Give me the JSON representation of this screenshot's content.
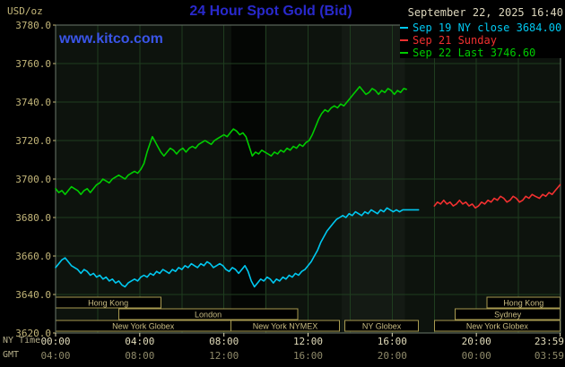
{
  "header": {
    "title": "24 Hour Spot Gold (Bid)",
    "datetime": "September 22, 2025 16:40",
    "watermark": "www.kitco.com",
    "y_unit": "USD/oz"
  },
  "legend": {
    "items": [
      {
        "label": "Sep 19 NY close 3684.00",
        "color": "#00c8f0"
      },
      {
        "label": "Sep 21 Sunday",
        "color": "#f23030"
      },
      {
        "label": "Sep 22 Last 3746.60",
        "color": "#00cc00"
      }
    ]
  },
  "axes": {
    "ny_time_label": "NY Time",
    "gmt_label": "GMT",
    "y_ticks": [
      "3780.0",
      "3760.0",
      "3740.0",
      "3720.0",
      "3700.0",
      "3680.0",
      "3660.0",
      "3640.0",
      "3620.0"
    ],
    "x_tick_hours": [
      0,
      4,
      8,
      12,
      16,
      20,
      23.983
    ],
    "x_ticks_ny": [
      "00:00",
      "04:00",
      "08:00",
      "12:00",
      "16:00",
      "20:00",
      "23:59"
    ],
    "x_ticks_gmt": [
      "04:00",
      "08:00",
      "12:00",
      "16:00",
      "20:00",
      "00:00",
      "03:59"
    ]
  },
  "colors": {
    "page_bg": "#000000",
    "plot_bg": "#0d130d",
    "grid": "#1f3d1f",
    "frame": "#6b7a6b",
    "title": "#2929cc",
    "watermark": "#3a55e8",
    "date_text": "#dcd6bc",
    "axis_text": "#c3b679",
    "axis_text_ny": "#e2dcba",
    "axis_text_gmt": "#8f8a6a",
    "session_border": "#a89a50",
    "session_text": "#c9bc82"
  },
  "chart_data": {
    "type": "line",
    "title": "24 Hour Spot Gold (Bid)",
    "ylabel": "USD/oz",
    "ylim": [
      3620,
      3780
    ],
    "ytick_step": 20,
    "xlim": [
      0,
      24
    ],
    "grid": true,
    "legend_position": "top-right",
    "shaded_regions": [
      {
        "name": "nymex-morning-shade",
        "start": 8.35,
        "end": 9.95,
        "color": "rgba(0,0,0,0.65)"
      },
      {
        "name": "afternoon-shade",
        "start": 13.6,
        "end": 16.6,
        "color": "rgba(255,255,255,0.03)"
      }
    ],
    "sessions": [
      {
        "row": 0,
        "label": "Hong Kong",
        "start": 0,
        "end": 5.0
      },
      {
        "row": 0,
        "label": "Hong Kong",
        "start": 20.5,
        "end": 23.98
      },
      {
        "row": 1,
        "label": "London",
        "start": 3.0,
        "end": 11.5
      },
      {
        "row": 1,
        "label": "Sydney",
        "start": 19.0,
        "end": 23.98
      },
      {
        "row": 2,
        "label": "New York Globex",
        "start": 0,
        "end": 8.33
      },
      {
        "row": 2,
        "label": "New York NYMEX",
        "start": 8.33,
        "end": 13.5
      },
      {
        "row": 2,
        "label": "NY Globex",
        "start": 13.75,
        "end": 17.25
      },
      {
        "row": 2,
        "label": "New York Globex",
        "start": 18.0,
        "end": 23.98
      }
    ],
    "series": [
      {
        "id": "sep19-ny-close",
        "name": "Sep 19 NY close 3684.00",
        "color": "#00c8f0",
        "close": 3684.0,
        "points": [
          [
            0.0,
            3654
          ],
          [
            0.15,
            3656
          ],
          [
            0.3,
            3658
          ],
          [
            0.45,
            3659
          ],
          [
            0.6,
            3657
          ],
          [
            0.75,
            3655
          ],
          [
            0.9,
            3654
          ],
          [
            1.05,
            3653
          ],
          [
            1.2,
            3651
          ],
          [
            1.35,
            3653
          ],
          [
            1.5,
            3652
          ],
          [
            1.65,
            3650
          ],
          [
            1.8,
            3651
          ],
          [
            1.95,
            3649
          ],
          [
            2.1,
            3650
          ],
          [
            2.25,
            3648
          ],
          [
            2.4,
            3649
          ],
          [
            2.55,
            3647
          ],
          [
            2.7,
            3648
          ],
          [
            2.85,
            3646
          ],
          [
            3.0,
            3647
          ],
          [
            3.15,
            3645
          ],
          [
            3.3,
            3644
          ],
          [
            3.45,
            3646
          ],
          [
            3.6,
            3647
          ],
          [
            3.75,
            3648
          ],
          [
            3.9,
            3647
          ],
          [
            4.05,
            3649
          ],
          [
            4.2,
            3650
          ],
          [
            4.35,
            3649
          ],
          [
            4.5,
            3651
          ],
          [
            4.65,
            3650
          ],
          [
            4.8,
            3652
          ],
          [
            4.95,
            3651
          ],
          [
            5.1,
            3653
          ],
          [
            5.25,
            3652
          ],
          [
            5.4,
            3651
          ],
          [
            5.55,
            3653
          ],
          [
            5.7,
            3652
          ],
          [
            5.85,
            3654
          ],
          [
            6.0,
            3653
          ],
          [
            6.15,
            3655
          ],
          [
            6.3,
            3654
          ],
          [
            6.45,
            3656
          ],
          [
            6.6,
            3655
          ],
          [
            6.75,
            3654
          ],
          [
            6.9,
            3656
          ],
          [
            7.05,
            3655
          ],
          [
            7.2,
            3657
          ],
          [
            7.35,
            3656
          ],
          [
            7.5,
            3654
          ],
          [
            7.65,
            3655
          ],
          [
            7.8,
            3656
          ],
          [
            7.95,
            3655
          ],
          [
            8.1,
            3653
          ],
          [
            8.25,
            3652
          ],
          [
            8.4,
            3654
          ],
          [
            8.55,
            3653
          ],
          [
            8.7,
            3651
          ],
          [
            8.85,
            3653
          ],
          [
            9.0,
            3655
          ],
          [
            9.15,
            3652
          ],
          [
            9.3,
            3647
          ],
          [
            9.45,
            3644
          ],
          [
            9.6,
            3646
          ],
          [
            9.75,
            3648
          ],
          [
            9.9,
            3647
          ],
          [
            10.05,
            3649
          ],
          [
            10.2,
            3648
          ],
          [
            10.35,
            3646
          ],
          [
            10.5,
            3648
          ],
          [
            10.65,
            3647
          ],
          [
            10.8,
            3649
          ],
          [
            10.95,
            3648
          ],
          [
            11.1,
            3650
          ],
          [
            11.25,
            3649
          ],
          [
            11.4,
            3651
          ],
          [
            11.55,
            3650
          ],
          [
            11.7,
            3652
          ],
          [
            11.85,
            3653
          ],
          [
            12.0,
            3655
          ],
          [
            12.15,
            3657
          ],
          [
            12.3,
            3660
          ],
          [
            12.45,
            3663
          ],
          [
            12.6,
            3667
          ],
          [
            12.75,
            3670
          ],
          [
            12.9,
            3673
          ],
          [
            13.05,
            3675
          ],
          [
            13.2,
            3677
          ],
          [
            13.35,
            3679
          ],
          [
            13.5,
            3680
          ],
          [
            13.65,
            3681
          ],
          [
            13.8,
            3680
          ],
          [
            13.95,
            3682
          ],
          [
            14.1,
            3681
          ],
          [
            14.25,
            3683
          ],
          [
            14.4,
            3682
          ],
          [
            14.55,
            3681
          ],
          [
            14.7,
            3683
          ],
          [
            14.85,
            3682
          ],
          [
            15.0,
            3684
          ],
          [
            15.15,
            3683
          ],
          [
            15.3,
            3682
          ],
          [
            15.45,
            3684
          ],
          [
            15.6,
            3683
          ],
          [
            15.75,
            3685
          ],
          [
            15.9,
            3684
          ],
          [
            16.05,
            3683
          ],
          [
            16.2,
            3684
          ],
          [
            16.35,
            3683
          ],
          [
            16.5,
            3684
          ],
          [
            16.65,
            3684
          ],
          [
            17.0,
            3684
          ],
          [
            17.25,
            3684
          ]
        ]
      },
      {
        "id": "sep21-sunday",
        "name": "Sep 21 Sunday",
        "color": "#f23030",
        "points": [
          [
            18.0,
            3686
          ],
          [
            18.15,
            3688
          ],
          [
            18.3,
            3687
          ],
          [
            18.45,
            3689
          ],
          [
            18.6,
            3687
          ],
          [
            18.75,
            3688
          ],
          [
            18.9,
            3686
          ],
          [
            19.05,
            3687
          ],
          [
            19.2,
            3689
          ],
          [
            19.35,
            3687
          ],
          [
            19.5,
            3688
          ],
          [
            19.65,
            3686
          ],
          [
            19.8,
            3687
          ],
          [
            19.95,
            3685
          ],
          [
            20.1,
            3686
          ],
          [
            20.25,
            3688
          ],
          [
            20.4,
            3687
          ],
          [
            20.55,
            3689
          ],
          [
            20.7,
            3688
          ],
          [
            20.85,
            3690
          ],
          [
            21.0,
            3689
          ],
          [
            21.15,
            3691
          ],
          [
            21.3,
            3690
          ],
          [
            21.45,
            3688
          ],
          [
            21.6,
            3689
          ],
          [
            21.75,
            3691
          ],
          [
            21.9,
            3690
          ],
          [
            22.05,
            3688
          ],
          [
            22.2,
            3689
          ],
          [
            22.35,
            3691
          ],
          [
            22.5,
            3690
          ],
          [
            22.65,
            3692
          ],
          [
            22.8,
            3691
          ],
          [
            23.0,
            3690
          ],
          [
            23.15,
            3692
          ],
          [
            23.3,
            3691
          ],
          [
            23.45,
            3693
          ],
          [
            23.6,
            3692
          ],
          [
            23.75,
            3694
          ],
          [
            23.9,
            3696
          ],
          [
            23.98,
            3697
          ]
        ]
      },
      {
        "id": "sep22-current",
        "name": "Sep 22 Last 3746.60",
        "color": "#00cc00",
        "last": 3746.6,
        "points": [
          [
            0.0,
            3695
          ],
          [
            0.15,
            3693
          ],
          [
            0.3,
            3694
          ],
          [
            0.45,
            3692
          ],
          [
            0.6,
            3694
          ],
          [
            0.75,
            3696
          ],
          [
            0.9,
            3695
          ],
          [
            1.05,
            3694
          ],
          [
            1.2,
            3692
          ],
          [
            1.35,
            3694
          ],
          [
            1.5,
            3695
          ],
          [
            1.65,
            3693
          ],
          [
            1.8,
            3695
          ],
          [
            1.95,
            3697
          ],
          [
            2.1,
            3698
          ],
          [
            2.25,
            3700
          ],
          [
            2.4,
            3699
          ],
          [
            2.55,
            3698
          ],
          [
            2.7,
            3700
          ],
          [
            2.85,
            3701
          ],
          [
            3.0,
            3702
          ],
          [
            3.15,
            3701
          ],
          [
            3.3,
            3700
          ],
          [
            3.45,
            3702
          ],
          [
            3.6,
            3703
          ],
          [
            3.75,
            3704
          ],
          [
            3.9,
            3703
          ],
          [
            4.05,
            3705
          ],
          [
            4.2,
            3708
          ],
          [
            4.35,
            3714
          ],
          [
            4.5,
            3719
          ],
          [
            4.6,
            3722
          ],
          [
            4.7,
            3720
          ],
          [
            4.85,
            3717
          ],
          [
            5.0,
            3714
          ],
          [
            5.15,
            3712
          ],
          [
            5.3,
            3714
          ],
          [
            5.45,
            3716
          ],
          [
            5.6,
            3715
          ],
          [
            5.75,
            3713
          ],
          [
            5.9,
            3715
          ],
          [
            6.05,
            3716
          ],
          [
            6.2,
            3714
          ],
          [
            6.35,
            3716
          ],
          [
            6.5,
            3717
          ],
          [
            6.65,
            3716
          ],
          [
            6.8,
            3718
          ],
          [
            6.95,
            3719
          ],
          [
            7.1,
            3720
          ],
          [
            7.25,
            3719
          ],
          [
            7.4,
            3718
          ],
          [
            7.55,
            3720
          ],
          [
            7.7,
            3721
          ],
          [
            7.85,
            3722
          ],
          [
            8.0,
            3723
          ],
          [
            8.15,
            3722
          ],
          [
            8.3,
            3724
          ],
          [
            8.45,
            3726
          ],
          [
            8.6,
            3725
          ],
          [
            8.75,
            3723
          ],
          [
            8.9,
            3724
          ],
          [
            9.05,
            3722
          ],
          [
            9.2,
            3717
          ],
          [
            9.35,
            3712
          ],
          [
            9.5,
            3714
          ],
          [
            9.65,
            3713
          ],
          [
            9.8,
            3715
          ],
          [
            9.95,
            3714
          ],
          [
            10.1,
            3713
          ],
          [
            10.25,
            3712
          ],
          [
            10.4,
            3714
          ],
          [
            10.55,
            3713
          ],
          [
            10.7,
            3715
          ],
          [
            10.85,
            3714
          ],
          [
            11.0,
            3716
          ],
          [
            11.15,
            3715
          ],
          [
            11.3,
            3717
          ],
          [
            11.45,
            3716
          ],
          [
            11.6,
            3718
          ],
          [
            11.75,
            3717
          ],
          [
            11.9,
            3719
          ],
          [
            12.05,
            3720
          ],
          [
            12.2,
            3723
          ],
          [
            12.35,
            3727
          ],
          [
            12.5,
            3731
          ],
          [
            12.65,
            3734
          ],
          [
            12.8,
            3736
          ],
          [
            12.95,
            3735
          ],
          [
            13.1,
            3737
          ],
          [
            13.25,
            3738
          ],
          [
            13.4,
            3737
          ],
          [
            13.55,
            3739
          ],
          [
            13.7,
            3738
          ],
          [
            13.85,
            3740
          ],
          [
            14.0,
            3742
          ],
          [
            14.15,
            3744
          ],
          [
            14.3,
            3746
          ],
          [
            14.45,
            3748
          ],
          [
            14.6,
            3746
          ],
          [
            14.75,
            3744
          ],
          [
            14.9,
            3745
          ],
          [
            15.05,
            3747
          ],
          [
            15.2,
            3746
          ],
          [
            15.35,
            3744
          ],
          [
            15.5,
            3746
          ],
          [
            15.65,
            3745
          ],
          [
            15.8,
            3747
          ],
          [
            15.95,
            3746
          ],
          [
            16.1,
            3744
          ],
          [
            16.25,
            3746
          ],
          [
            16.4,
            3745
          ],
          [
            16.55,
            3747
          ],
          [
            16.67,
            3746.6
          ]
        ]
      }
    ]
  }
}
